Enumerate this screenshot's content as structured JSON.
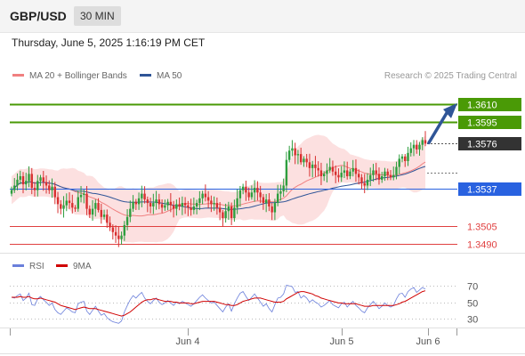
{
  "header": {
    "symbol": "GBP/USD",
    "timeframe": "30 MIN"
  },
  "datetime": "Thursday, June 5, 2025 1:16:19 PM CET",
  "legend": {
    "ma20": {
      "label": "MA 20 + Bollinger Bands",
      "color": "#f08080"
    },
    "ma50": {
      "label": "MA 50",
      "color": "#2f5597"
    }
  },
  "credit": "Research © 2025 Trading Central",
  "rsi_legend": {
    "rsi": {
      "label": "RSI",
      "color": "#6a7fdb"
    },
    "ma9": {
      "label": "9MA",
      "color": "#d00000"
    }
  },
  "chart_data": {
    "type": "candlestick",
    "price_range": [
      1.3483,
      1.3626
    ],
    "levels": [
      {
        "value": 1.361,
        "label": "1.3610",
        "kind": "resistance",
        "color": "#4a9a06"
      },
      {
        "value": 1.3595,
        "label": "1.3595",
        "kind": "resistance",
        "color": "#4a9a06"
      },
      {
        "value": 1.3576,
        "label": "1.3576",
        "kind": "last-price",
        "color": "#333333"
      },
      {
        "value": 1.3537,
        "label": "1.3537",
        "kind": "pivot",
        "color": "#2962e0"
      },
      {
        "value": 1.3505,
        "label": "1.3505",
        "kind": "support",
        "color": "#e04040"
      },
      {
        "value": 1.349,
        "label": "1.3490",
        "kind": "support",
        "color": "#e04040"
      }
    ],
    "x_labels": [
      "Jun 4",
      "Jun 5",
      "Jun 6"
    ],
    "closes": [
      1.3536,
      1.354,
      1.3545,
      1.3548,
      1.3541,
      1.3544,
      1.355,
      1.3538,
      1.3536,
      1.3544,
      1.3547,
      1.3543,
      1.354,
      1.3536,
      1.3539,
      1.353,
      1.3524,
      1.352,
      1.3523,
      1.3527,
      1.3525,
      1.3521,
      1.352,
      1.353,
      1.3532,
      1.3533,
      1.352,
      1.3515,
      1.352,
      1.3525,
      1.3519,
      1.3513,
      1.3515,
      1.3508,
      1.3504,
      1.35,
      1.3497,
      1.3494,
      1.3497,
      1.3506,
      1.3513,
      1.352,
      1.3526,
      1.3524,
      1.3529,
      1.3533,
      1.3528,
      1.3525,
      1.3522,
      1.3525,
      1.3528,
      1.3524,
      1.3521,
      1.3523,
      1.3526,
      1.3523,
      1.352,
      1.3524,
      1.3522,
      1.3525,
      1.3523,
      1.3521,
      1.3519,
      1.3522,
      1.3525,
      1.3529,
      1.3533,
      1.353,
      1.3527,
      1.3524,
      1.3525,
      1.3521,
      1.3517,
      1.3512,
      1.3518,
      1.3522,
      1.3512,
      1.3521,
      1.3529,
      1.3536,
      1.3539,
      1.3534,
      1.353,
      1.3534,
      1.3538,
      1.3534,
      1.353,
      1.3525,
      1.3528,
      1.3522,
      1.3517,
      1.3525,
      1.3533,
      1.3535,
      1.354,
      1.3562,
      1.357,
      1.3572,
      1.3566,
      1.3567,
      1.356,
      1.3563,
      1.356,
      1.3555,
      1.3558,
      1.3555,
      1.3553,
      1.3548,
      1.355,
      1.3553,
      1.3556,
      1.3552,
      1.3549,
      1.3547,
      1.3551,
      1.3553,
      1.3548,
      1.3552,
      1.3555,
      1.355,
      1.3547,
      1.3542,
      1.354,
      1.3545,
      1.3549,
      1.3553,
      1.355,
      1.3545,
      1.3548,
      1.3552,
      1.3549,
      1.3547,
      1.3549,
      1.3556,
      1.3563,
      1.3565,
      1.3561,
      1.3568,
      1.3572,
      1.3575,
      1.3571,
      1.3575,
      1.3579,
      1.3576
    ],
    "rsi": {
      "ticks": [
        70,
        50,
        30
      ],
      "range": [
        20,
        80
      ],
      "values": [
        56,
        55,
        58,
        60,
        52,
        55,
        61,
        47,
        46,
        54,
        57,
        53,
        50,
        46,
        49,
        41,
        37,
        35,
        39,
        43,
        41,
        38,
        37,
        48,
        50,
        51,
        39,
        35,
        40,
        45,
        39,
        34,
        36,
        31,
        28,
        26,
        25,
        24,
        27,
        38,
        46,
        53,
        58,
        55,
        59,
        62,
        55,
        51,
        48,
        52,
        55,
        50,
        47,
        49,
        52,
        49,
        46,
        50,
        48,
        51,
        49,
        47,
        45,
        48,
        52,
        56,
        59,
        55,
        52,
        49,
        50,
        46,
        42,
        38,
        44,
        48,
        39,
        48,
        55,
        61,
        63,
        57,
        52,
        56,
        60,
        55,
        50,
        45,
        48,
        42,
        38,
        47,
        55,
        56,
        60,
        71,
        70,
        69,
        62,
        63,
        55,
        58,
        55,
        50,
        53,
        50,
        48,
        44,
        46,
        49,
        52,
        47,
        45,
        43,
        48,
        50,
        44,
        48,
        51,
        46,
        43,
        39,
        37,
        43,
        47,
        51,
        47,
        42,
        45,
        49,
        46,
        44,
        46,
        54,
        60,
        61,
        56,
        63,
        66,
        68,
        62,
        65,
        68,
        66
      ],
      "ma9": [
        56,
        56,
        56,
        57,
        56,
        56,
        57,
        55,
        54,
        54,
        55,
        54,
        53,
        52,
        51,
        50,
        48,
        46,
        45,
        44,
        43,
        42,
        41,
        42,
        43,
        44,
        43,
        42,
        42,
        42,
        41,
        40,
        39,
        38,
        37,
        36,
        35,
        34,
        33,
        34,
        36,
        38,
        41,
        44,
        47,
        50,
        52,
        53,
        53,
        54,
        54,
        53,
        52,
        51,
        51,
        51,
        50,
        50,
        49,
        49,
        49,
        49,
        48,
        48,
        49,
        50,
        51,
        51,
        51,
        51,
        51,
        50,
        49,
        48,
        47,
        47,
        46,
        46,
        47,
        49,
        51,
        52,
        53,
        54,
        55,
        55,
        55,
        54,
        53,
        52,
        51,
        50,
        50,
        50,
        51,
        54,
        56,
        58,
        60,
        62,
        63,
        63,
        62,
        61,
        60,
        58,
        57,
        55,
        54,
        53,
        52,
        51,
        50,
        49,
        49,
        48,
        48,
        48,
        48,
        48,
        47,
        46,
        45,
        45,
        45,
        46,
        46,
        46,
        46,
        46,
        46,
        46,
        46,
        47,
        48,
        50,
        51,
        53,
        55,
        57,
        59,
        61,
        63,
        64
      ]
    }
  }
}
